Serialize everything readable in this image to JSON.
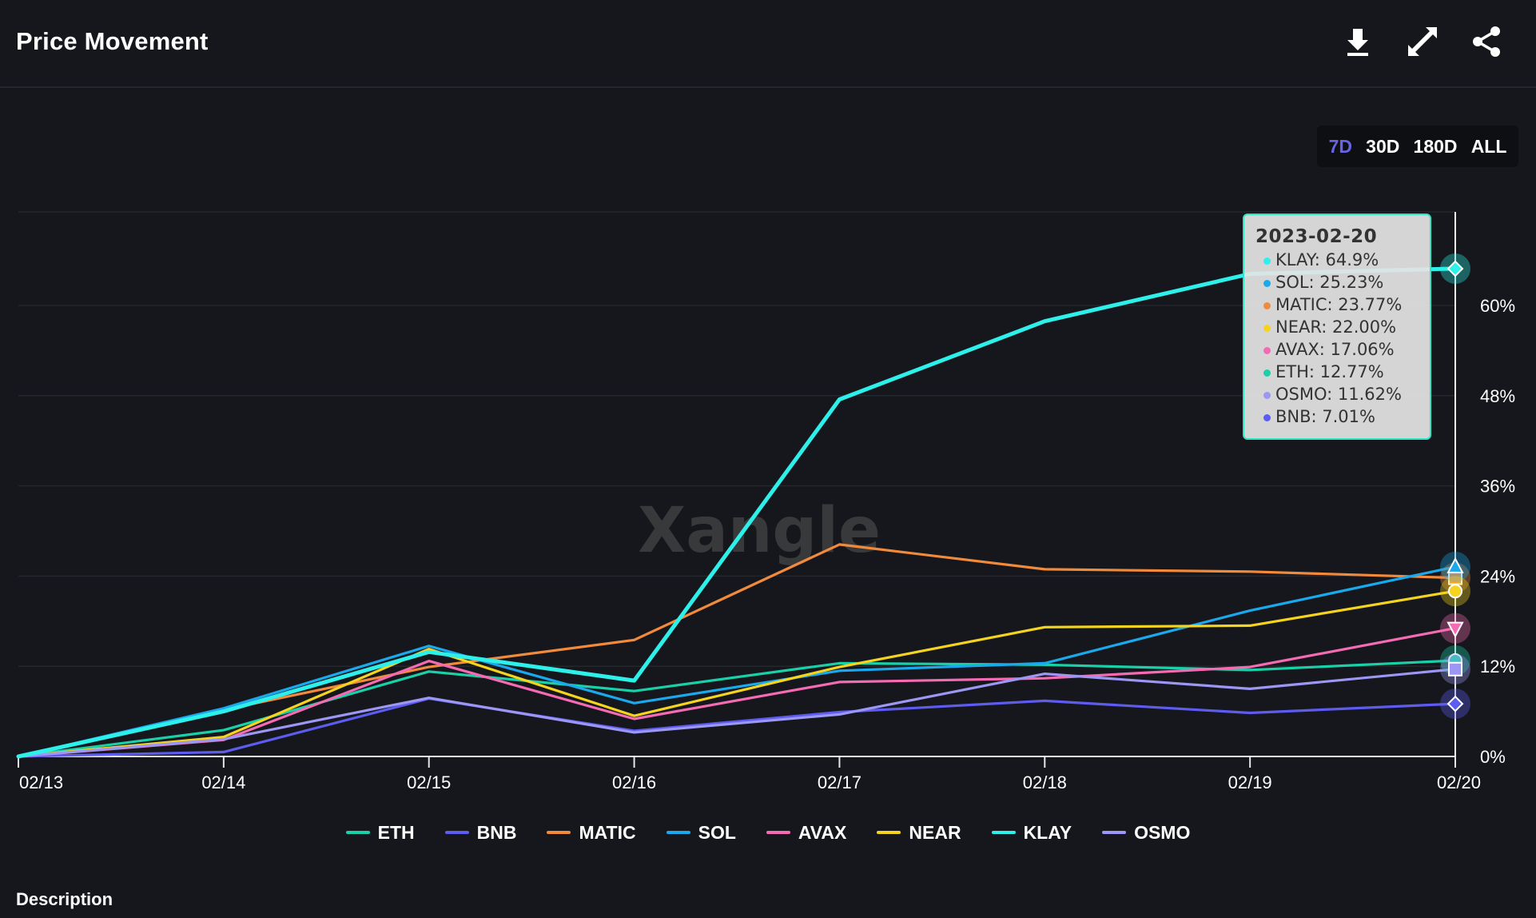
{
  "header": {
    "title": "Price Movement",
    "download_icon": "download-icon",
    "expand_icon": "expand-icon",
    "share_icon": "share-icon"
  },
  "range": {
    "options": [
      "7D",
      "30D",
      "180D",
      "ALL"
    ],
    "selected": "7D"
  },
  "watermark": "Xangle",
  "tooltip": {
    "date": "2023-02-20",
    "rows": [
      {
        "label": "KLAY: 64.9%",
        "color": "#2ef0ea"
      },
      {
        "label": "SOL: 25.23%",
        "color": "#1aa9ec"
      },
      {
        "label": "MATIC: 23.77%",
        "color": "#f28a3c"
      },
      {
        "label": "NEAR: 22.00%",
        "color": "#f5d41f"
      },
      {
        "label": "AVAX: 17.06%",
        "color": "#f56bb3"
      },
      {
        "label": "ETH: 12.77%",
        "color": "#19d0a8"
      },
      {
        "label": "OSMO: 11.62%",
        "color": "#9c97f4"
      },
      {
        "label": "BNB: 7.01%",
        "color": "#5e5cf0"
      }
    ]
  },
  "chart_data": {
    "type": "line",
    "title": "Price Movement",
    "x": [
      "02/13",
      "02/14",
      "02/15",
      "02/16",
      "02/17",
      "02/18",
      "02/19",
      "02/20"
    ],
    "ylim": [
      0,
      72
    ],
    "yticks": [
      0,
      12,
      24,
      36,
      48,
      60
    ],
    "ytick_labels": [
      "0%",
      "12%",
      "24%",
      "36%",
      "48%",
      "60%"
    ],
    "grid": true,
    "legend_position": "bottom",
    "series": [
      {
        "name": "ETH",
        "color": "#19d0a8",
        "values": [
          0,
          3.5,
          11.3,
          8.7,
          12.4,
          12.2,
          11.5,
          12.77
        ]
      },
      {
        "name": "BNB",
        "color": "#5e5cf0",
        "values": [
          0,
          0.6,
          7.7,
          3.4,
          5.9,
          7.4,
          5.8,
          7.01
        ]
      },
      {
        "name": "MATIC",
        "color": "#f28a3c",
        "values": [
          0,
          6.2,
          11.9,
          15.5,
          28.2,
          24.9,
          24.6,
          23.77
        ]
      },
      {
        "name": "SOL",
        "color": "#1aa9ec",
        "values": [
          0,
          6.4,
          14.7,
          7.1,
          11.4,
          12.4,
          19.4,
          25.23
        ]
      },
      {
        "name": "AVAX",
        "color": "#f56bb3",
        "values": [
          0,
          2.2,
          12.7,
          5.0,
          9.9,
          10.4,
          11.9,
          17.06
        ]
      },
      {
        "name": "NEAR",
        "color": "#f5d41f",
        "values": [
          0,
          2.6,
          14.3,
          5.4,
          11.9,
          17.2,
          17.4,
          22.0
        ]
      },
      {
        "name": "KLAY",
        "color": "#2ef0ea",
        "values": [
          0,
          6.0,
          13.9,
          10.1,
          47.5,
          57.9,
          64.2,
          64.9
        ]
      },
      {
        "name": "OSMO",
        "color": "#9c97f4",
        "values": [
          0,
          2.3,
          7.8,
          3.2,
          5.6,
          11.0,
          9.0,
          11.62
        ]
      }
    ],
    "marker_shapes": {
      "ETH": "circle",
      "BNB": "diamond",
      "MATIC": "square",
      "SOL": "triangle",
      "AVAX": "triangle-down",
      "NEAR": "circle",
      "KLAY": "diamond",
      "OSMO": "square"
    }
  },
  "description_label": "Description"
}
